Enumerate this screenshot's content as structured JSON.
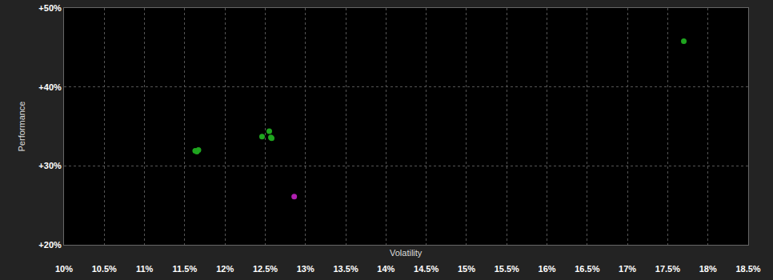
{
  "chart_data": {
    "type": "scatter",
    "x_label": "Volatility",
    "y_label": "Performance",
    "series": [
      {
        "color": "#1fa51f",
        "marker": "circle",
        "x": [
          11.63,
          11.67,
          11.65,
          12.46,
          12.55,
          12.57,
          12.58,
          17.7
        ],
        "values": [
          31.9,
          32.0,
          31.8,
          33.7,
          34.4,
          33.6,
          33.5,
          45.8
        ]
      },
      {
        "color": "#b01fb0",
        "marker": "circle",
        "x": [
          12.86
        ],
        "values": [
          26.1
        ]
      }
    ],
    "xlim": [
      10,
      18.5
    ],
    "xticks": [
      {
        "value": 10,
        "label": "10%"
      },
      {
        "value": 10.5,
        "label": "10.5%"
      },
      {
        "value": 11,
        "label": "11%"
      },
      {
        "value": 11.5,
        "label": "11.5%"
      },
      {
        "value": 12,
        "label": "12%"
      },
      {
        "value": 12.5,
        "label": "12.5%"
      },
      {
        "value": 13,
        "label": "13%"
      },
      {
        "value": 13.5,
        "label": "13.5%"
      },
      {
        "value": 14,
        "label": "14%"
      },
      {
        "value": 14.5,
        "label": "14.5%"
      },
      {
        "value": 15,
        "label": "15%"
      },
      {
        "value": 15.5,
        "label": "15.5%"
      },
      {
        "value": 16,
        "label": "16%"
      },
      {
        "value": 16.5,
        "label": "16.5%"
      },
      {
        "value": 17,
        "label": "17%"
      },
      {
        "value": 17.5,
        "label": "17.5%"
      },
      {
        "value": 18,
        "label": "18%"
      },
      {
        "value": 18.5,
        "label": "18.5%"
      }
    ],
    "ylim": [
      20,
      50
    ],
    "yticks": [
      {
        "value": 20,
        "label": "+20%"
      },
      {
        "value": 30,
        "label": "+30%"
      },
      {
        "value": 40,
        "label": "+40%"
      },
      {
        "value": 50,
        "label": "+50%"
      }
    ],
    "grid": true,
    "tick_labels": true
  }
}
